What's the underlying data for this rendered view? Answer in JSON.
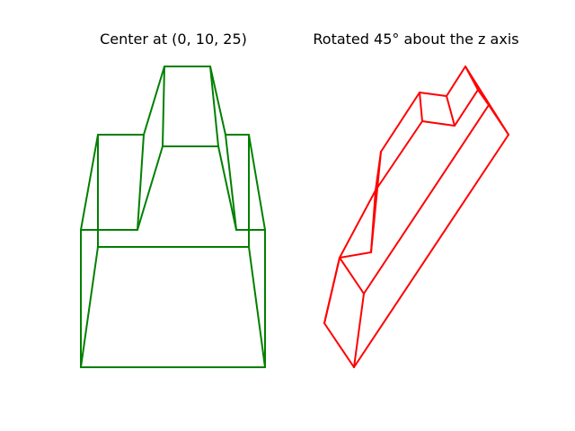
{
  "figure": {
    "panels": [
      {
        "title": "Center at (0, 10, 25)",
        "color": "#008000"
      },
      {
        "title": "Rotated 45° about the z axis",
        "color": "#ff0000"
      }
    ]
  }
}
